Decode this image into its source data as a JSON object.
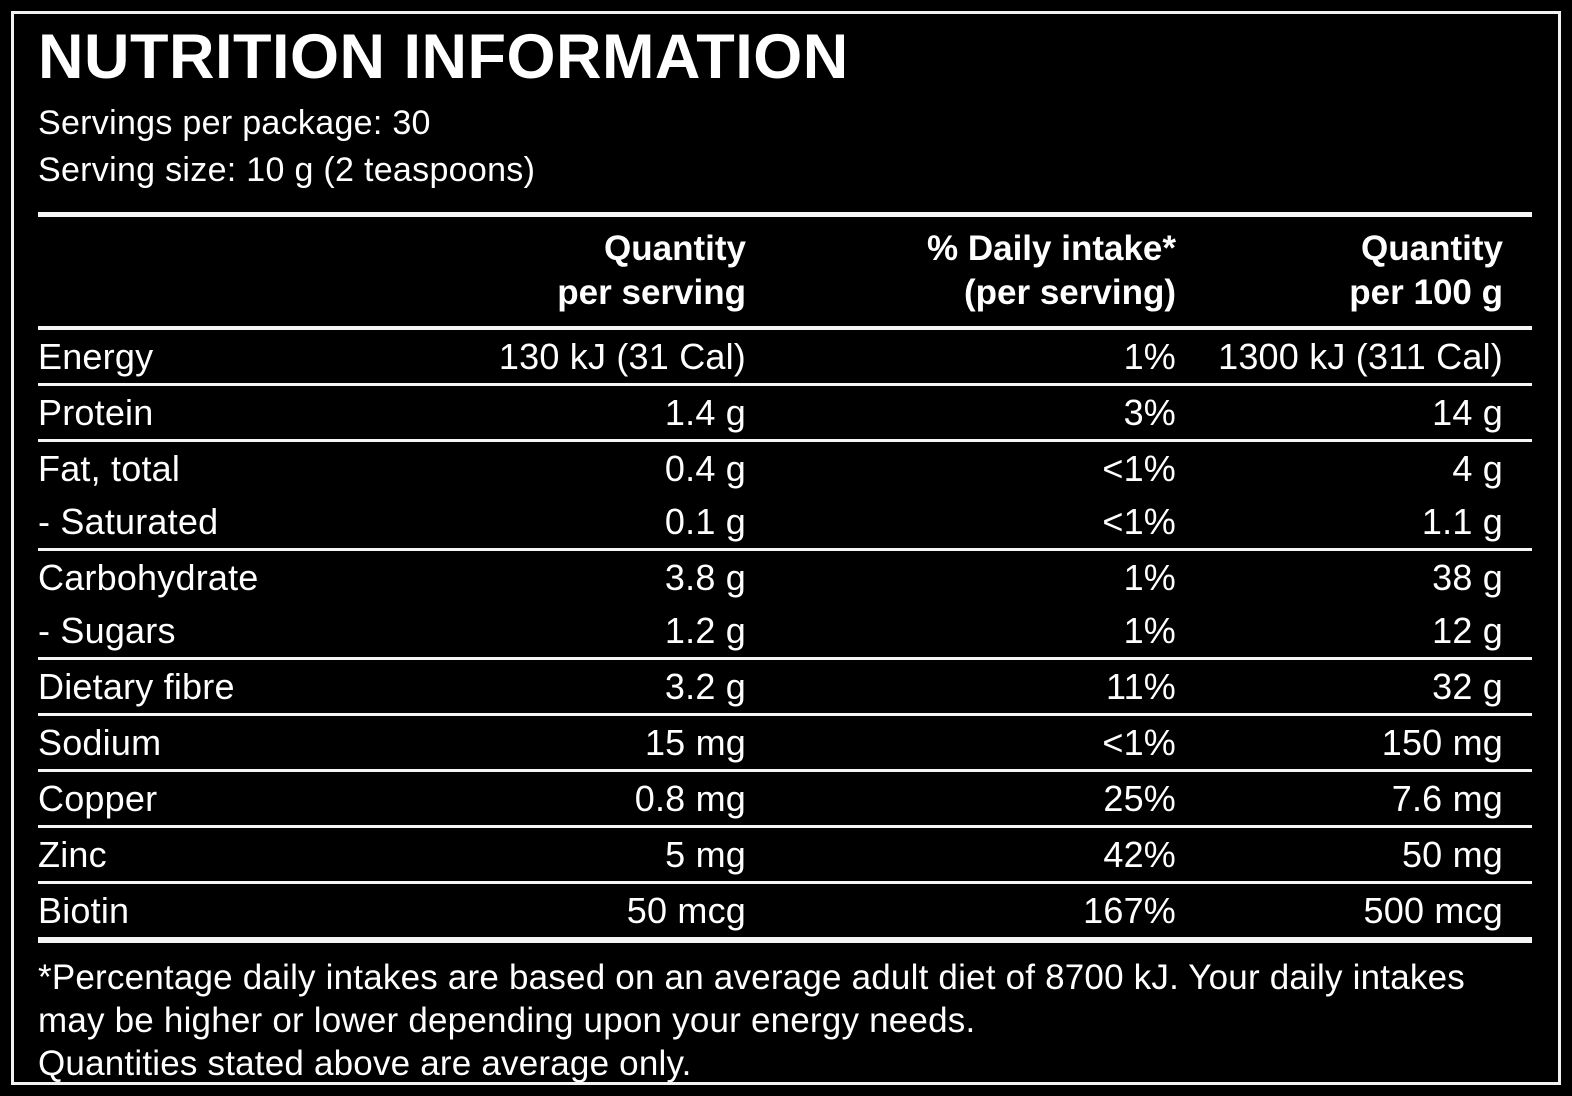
{
  "label": {
    "title": "NUTRITION INFORMATION",
    "servings_per_package": "Servings per package: 30",
    "serving_size": "Serving size: 10 g (2 teaspoons)",
    "header": {
      "quantity_per_serving": {
        "line1": "Quantity",
        "line2": "per serving"
      },
      "daily_intake": {
        "line1": "% Daily intake*",
        "line2": "(per serving)"
      },
      "quantity_per_100g": {
        "line1": "Quantity",
        "line2": "per 100 g"
      }
    },
    "rows": [
      {
        "nutrient": "Energy",
        "per_serving": "130 kJ (31 Cal)",
        "daily_intake": "1%",
        "per_100g": "1300 kJ (311 Cal)"
      },
      {
        "nutrient": "Protein",
        "per_serving": "1.4 g",
        "daily_intake": "3%",
        "per_100g": "14 g"
      },
      {
        "nutrient": "Fat, total",
        "per_serving": "0.4 g",
        "daily_intake": "<1%",
        "per_100g": "4 g"
      },
      {
        "nutrient": "- Saturated",
        "per_serving": "0.1 g",
        "daily_intake": "<1%",
        "per_100g": "1.1 g"
      },
      {
        "nutrient": "Carbohydrate",
        "per_serving": "3.8 g",
        "daily_intake": "1%",
        "per_100g": "38 g"
      },
      {
        "nutrient": "- Sugars",
        "per_serving": "1.2 g",
        "daily_intake": "1%",
        "per_100g": "12 g"
      },
      {
        "nutrient": "Dietary fibre",
        "per_serving": "3.2 g",
        "daily_intake": "11%",
        "per_100g": "32 g"
      },
      {
        "nutrient": "Sodium",
        "per_serving": "15 mg",
        "daily_intake": "<1%",
        "per_100g": "150 mg"
      },
      {
        "nutrient": "Copper",
        "per_serving": "0.8 mg",
        "daily_intake": "25%",
        "per_100g": "7.6 mg"
      },
      {
        "nutrient": "Zinc",
        "per_serving": "5 mg",
        "daily_intake": "42%",
        "per_100g": "50 mg"
      },
      {
        "nutrient": "Biotin",
        "per_serving": "50 mcg",
        "daily_intake": "167%",
        "per_100g": "500 mcg"
      }
    ],
    "footnote": {
      "daily_intake_note": "*Percentage daily intakes are based on an average adult diet of 8700 kJ. Your daily intakes may be higher or lower depending upon your energy needs.",
      "average_note": "Quantities stated above are average only."
    },
    "colors": {
      "background": "#000000",
      "text": "#ffffff"
    }
  }
}
